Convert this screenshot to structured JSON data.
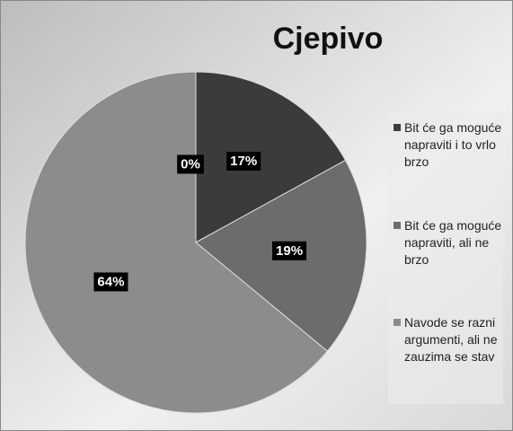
{
  "chart_data": {
    "type": "pie",
    "title": "Cjepivo",
    "categories": [
      "Bit će ga moguće napraviti i to vrlo brzo",
      "Bit će ga moguće napraviti, ali ne brzo",
      "Navode se razni argumenti, ali ne zauzima se stav",
      null
    ],
    "values": [
      17,
      19,
      64,
      0
    ],
    "value_labels": [
      "17%",
      "19%",
      "64%",
      "0%"
    ],
    "colors": [
      "#3b3b3b",
      "#6c6c6c",
      "#8c8c8c",
      "#a0a0a0"
    ],
    "legend": "right"
  }
}
